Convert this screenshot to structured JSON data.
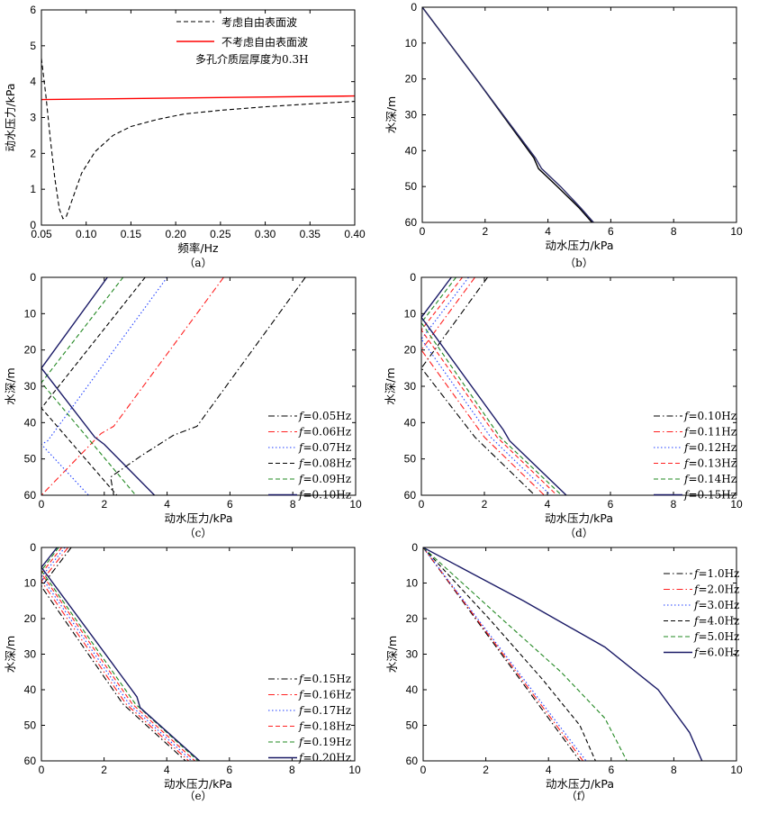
{
  "chart_data": [
    {
      "panel": "a",
      "caption": "（a）",
      "type": "line",
      "xlabel": "频率/Hz",
      "ylabel": "动水压力/kPa",
      "xlim": [
        0.05,
        0.4
      ],
      "ylim": [
        0,
        6
      ],
      "xticks": [
        0.05,
        0.1,
        0.15,
        0.2,
        0.25,
        0.3,
        0.35,
        0.4
      ],
      "xtick_labels": [
        "0.05",
        "0.10",
        "0.15",
        "0.20",
        "0.25",
        "0.30",
        "0.35",
        "0.40"
      ],
      "yticks": [
        0,
        1,
        2,
        3,
        4,
        5,
        6
      ],
      "ytick_labels": [
        "0",
        "1",
        "2",
        "3",
        "4",
        "5",
        "6"
      ],
      "legend_position": "top-right",
      "annotation": "多孔介质层厚度为0.3H",
      "series": [
        {
          "name": "考虑自由表面波",
          "color": "#000000",
          "dash": "dash",
          "x": [
            0.05,
            0.055,
            0.06,
            0.065,
            0.07,
            0.074,
            0.078,
            0.085,
            0.095,
            0.11,
            0.13,
            0.15,
            0.18,
            0.21,
            0.25,
            0.3,
            0.35,
            0.4
          ],
          "y": [
            4.65,
            3.6,
            2.4,
            1.3,
            0.45,
            0.18,
            0.25,
            0.75,
            1.45,
            2.05,
            2.5,
            2.75,
            2.95,
            3.1,
            3.2,
            3.3,
            3.38,
            3.45
          ]
        },
        {
          "name": "不考虑自由表面波",
          "color": "#ff0000",
          "dash": "solid",
          "x": [
            0.05,
            0.4
          ],
          "y": [
            3.5,
            3.6
          ]
        }
      ]
    },
    {
      "panel": "b",
      "caption": "（b）",
      "type": "line",
      "xlabel": "动水压力/kPa",
      "ylabel": "水深/m",
      "xlim": [
        0,
        10
      ],
      "ylim": [
        0,
        60
      ],
      "y_inverted": true,
      "xticks": [
        0,
        2,
        4,
        6,
        8,
        10
      ],
      "yticks": [
        0,
        10,
        20,
        30,
        40,
        50,
        60
      ],
      "series": [
        {
          "color": "#000000",
          "dash": "solid",
          "x": [
            0,
            1.8,
            3.55,
            3.7,
            4.3,
            5.0,
            5.4
          ],
          "y": [
            0,
            21,
            42,
            45,
            50,
            56,
            60
          ]
        },
        {
          "color": "#2a2a66",
          "dash": "solid",
          "x": [
            0,
            1.8,
            3.6,
            3.8,
            4.4,
            5.05,
            5.45
          ],
          "y": [
            0,
            21,
            42,
            45,
            50,
            56,
            60
          ]
        }
      ]
    },
    {
      "panel": "c",
      "caption": "（c）",
      "type": "line",
      "xlabel": "动水压力/kPa",
      "ylabel": "水深/m",
      "xlim": [
        0,
        10
      ],
      "ylim": [
        0,
        60
      ],
      "y_inverted": true,
      "xticks": [
        0,
        2,
        4,
        6,
        8,
        10
      ],
      "yticks": [
        0,
        10,
        20,
        30,
        40,
        50,
        60
      ],
      "legend_position": "bottom-right",
      "series": [
        {
          "name": "f=0.05Hz",
          "color": "#000000",
          "dash": "dashdot",
          "x": [
            8.4,
            4.95,
            4.2,
            3.2,
            2.2,
            2.3
          ],
          "y": [
            0,
            41,
            43.5,
            49,
            55,
            60
          ]
        },
        {
          "name": "f=0.06Hz",
          "color": "#ff2020",
          "dash": "dashdot",
          "x": [
            5.8,
            2.3,
            1.9,
            0
          ],
          "y": [
            0,
            41,
            43,
            60
          ]
        },
        {
          "name": "f=0.07Hz",
          "color": "#2040ff",
          "dash": "dot",
          "x": [
            4.0,
            0.2,
            0,
            1.5
          ],
          "y": [
            0,
            45,
            46,
            60
          ]
        },
        {
          "name": "f=0.08Hz",
          "color": "#000000",
          "dash": "dash",
          "x": [
            3.3,
            0,
            2.4
          ],
          "y": [
            0,
            36,
            60
          ]
        },
        {
          "name": "f=0.09Hz",
          "color": "#228822",
          "dash": "dash",
          "x": [
            2.6,
            0,
            3.0
          ],
          "y": [
            0,
            29,
            60
          ]
        },
        {
          "name": "f=0.10Hz",
          "color": "#1a1a66",
          "dash": "solid",
          "x": [
            2.1,
            0,
            1.7,
            2.0,
            3.6
          ],
          "y": [
            0,
            25,
            44,
            46,
            60
          ]
        }
      ]
    },
    {
      "panel": "d",
      "caption": "（d）",
      "type": "line",
      "xlabel": "动水压力/kPa",
      "ylabel": "水深/m",
      "xlim": [
        0,
        10
      ],
      "ylim": [
        0,
        60
      ],
      "y_inverted": true,
      "xticks": [
        0,
        2,
        4,
        6,
        8,
        10
      ],
      "yticks": [
        0,
        10,
        20,
        30,
        40,
        50,
        60
      ],
      "legend_position": "bottom-right",
      "series": [
        {
          "name": "f=0.10Hz",
          "color": "#000000",
          "dash": "dashdot",
          "x": [
            2.1,
            0,
            1.7,
            3.6
          ],
          "y": [
            0,
            25,
            44,
            60
          ]
        },
        {
          "name": "f=0.11Hz",
          "color": "#ff2020",
          "dash": "dashdot",
          "x": [
            1.7,
            0,
            2.0,
            3.9
          ],
          "y": [
            0,
            20,
            44,
            60
          ]
        },
        {
          "name": "f=0.12Hz",
          "color": "#2040ff",
          "dash": "dot",
          "x": [
            1.5,
            0,
            2.2,
            4.1
          ],
          "y": [
            0,
            17,
            44,
            60
          ]
        },
        {
          "name": "f=0.13Hz",
          "color": "#ff2020",
          "dash": "dash",
          "x": [
            1.3,
            0,
            2.4,
            4.3
          ],
          "y": [
            0,
            14.5,
            44,
            60
          ]
        },
        {
          "name": "f=0.14Hz",
          "color": "#228822",
          "dash": "dash",
          "x": [
            1.1,
            0,
            2.5,
            4.45
          ],
          "y": [
            0,
            12.5,
            44,
            60
          ]
        },
        {
          "name": "f=0.15Hz",
          "color": "#1a1a66",
          "dash": "solid",
          "x": [
            0.95,
            0,
            2.6,
            2.8,
            4.6
          ],
          "y": [
            0,
            11,
            42,
            45,
            60
          ]
        }
      ]
    },
    {
      "panel": "e",
      "caption": "（e）",
      "type": "line",
      "xlabel": "动水压力/kPa",
      "ylabel": "水深/m",
      "xlim": [
        0,
        10
      ],
      "ylim": [
        0,
        60
      ],
      "y_inverted": true,
      "xticks": [
        0,
        2,
        4,
        6,
        8,
        10
      ],
      "yticks": [
        0,
        10,
        20,
        30,
        40,
        50,
        60
      ],
      "legend_position": "bottom-right",
      "series": [
        {
          "name": "f=0.15Hz",
          "color": "#000000",
          "dash": "dashdot",
          "x": [
            0.95,
            0,
            2.6,
            4.6
          ],
          "y": [
            0,
            11,
            44,
            60
          ]
        },
        {
          "name": "f=0.16Hz",
          "color": "#ff2020",
          "dash": "dashdot",
          "x": [
            0.85,
            0,
            2.7,
            4.7
          ],
          "y": [
            0,
            9.5,
            44,
            60
          ]
        },
        {
          "name": "f=0.17Hz",
          "color": "#2040ff",
          "dash": "dot",
          "x": [
            0.75,
            0,
            2.8,
            4.8
          ],
          "y": [
            0,
            8.3,
            44,
            60
          ]
        },
        {
          "name": "f=0.18Hz",
          "color": "#ff2020",
          "dash": "dash",
          "x": [
            0.65,
            0,
            2.9,
            4.9
          ],
          "y": [
            0,
            7.3,
            44,
            60
          ]
        },
        {
          "name": "f=0.19Hz",
          "color": "#228822",
          "dash": "dash",
          "x": [
            0.55,
            0,
            3.0,
            5.0
          ],
          "y": [
            0,
            6.5,
            44,
            60
          ]
        },
        {
          "name": "f=0.20Hz",
          "color": "#1a1a66",
          "dash": "solid",
          "x": [
            0.5,
            0,
            3.05,
            3.15,
            5.05
          ],
          "y": [
            0,
            5.6,
            42,
            45,
            60
          ]
        }
      ]
    },
    {
      "panel": "f",
      "caption": "（f）",
      "type": "line",
      "xlabel": "动水压力/kPa",
      "ylabel": "水深/m",
      "xlim": [
        0,
        10
      ],
      "ylim": [
        0,
        60
      ],
      "y_inverted": true,
      "xticks": [
        0,
        2,
        4,
        6,
        8,
        10
      ],
      "yticks": [
        0,
        10,
        20,
        30,
        40,
        50,
        60
      ],
      "legend_position": "top-right",
      "series": [
        {
          "name": "f=1.0Hz",
          "color": "#000000",
          "dash": "dashdot",
          "x": [
            0,
            2.5,
            5.0
          ],
          "y": [
            0,
            30,
            60
          ]
        },
        {
          "name": "f=2.0Hz",
          "color": "#ff2020",
          "dash": "dashdot",
          "x": [
            0,
            2.55,
            5.1
          ],
          "y": [
            0,
            30,
            60
          ]
        },
        {
          "name": "f=3.0Hz",
          "color": "#2040ff",
          "dash": "dot",
          "x": [
            0,
            2.6,
            5.2
          ],
          "y": [
            0,
            30,
            60
          ]
        },
        {
          "name": "f=4.0Hz",
          "color": "#000000",
          "dash": "dash",
          "x": [
            0,
            2.1,
            3.8,
            5.0,
            5.5
          ],
          "y": [
            0,
            20,
            37,
            50,
            60
          ]
        },
        {
          "name": "f=5.0Hz",
          "color": "#228822",
          "dash": "dash",
          "x": [
            0,
            2.5,
            4.4,
            5.8,
            6.5
          ],
          "y": [
            0,
            20,
            35,
            48,
            60
          ]
        },
        {
          "name": "f=6.0Hz",
          "color": "#1a1a66",
          "dash": "solid",
          "x": [
            0,
            3.2,
            5.8,
            7.5,
            8.5,
            8.9
          ],
          "y": [
            0,
            15,
            28,
            40,
            52,
            60
          ]
        }
      ]
    }
  ]
}
